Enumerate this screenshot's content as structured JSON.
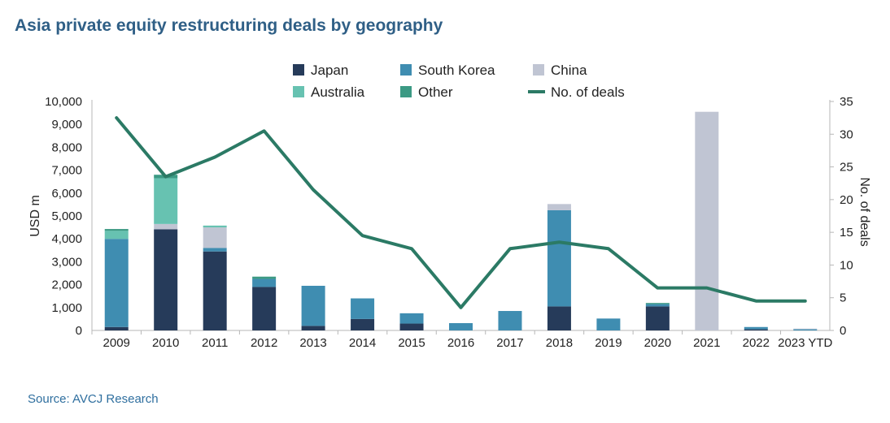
{
  "title": "Asia private equity restructuring deals by geography",
  "source": "Source: AVCJ Research",
  "chart_data": {
    "type": "bar",
    "stacked": true,
    "title": "Asia private equity restructuring deals by geography",
    "categories": [
      "2009",
      "2010",
      "2011",
      "2012",
      "2013",
      "2014",
      "2015",
      "2016",
      "2017",
      "2018",
      "2019",
      "2020",
      "2021",
      "2022",
      "2023 YTD"
    ],
    "ylabel": "USD m",
    "y2label": "No. of deals",
    "ylim": [
      0,
      10000
    ],
    "y2lim": [
      0,
      35
    ],
    "yticks": [
      "0",
      "1,000",
      "2,000",
      "3,000",
      "4,000",
      "5,000",
      "6,000",
      "7,000",
      "8,000",
      "9,000",
      "10,000"
    ],
    "y2ticks": [
      "0",
      "5",
      "10",
      "15",
      "20",
      "25",
      "30",
      "35"
    ],
    "series": [
      {
        "name": "Japan",
        "color": "#263b5a",
        "values": [
          150,
          4420,
          3450,
          1900,
          200,
          500,
          300,
          0,
          0,
          1050,
          0,
          1050,
          0,
          50,
          0
        ]
      },
      {
        "name": "South Korea",
        "color": "#3f8db1",
        "values": [
          3850,
          0,
          150,
          350,
          1750,
          900,
          450,
          320,
          850,
          4200,
          520,
          100,
          0,
          100,
          50
        ]
      },
      {
        "name": "China",
        "color": "#c0c5d3",
        "values": [
          0,
          230,
          900,
          0,
          0,
          0,
          0,
          0,
          0,
          270,
          0,
          0,
          9550,
          0,
          30
        ]
      },
      {
        "name": "Australia",
        "color": "#67c2b1",
        "values": [
          350,
          2000,
          80,
          0,
          0,
          0,
          0,
          0,
          0,
          0,
          0,
          0,
          0,
          0,
          0
        ]
      },
      {
        "name": "Other",
        "color": "#3c9a84",
        "values": [
          80,
          150,
          0,
          100,
          0,
          0,
          0,
          0,
          0,
          0,
          0,
          50,
          0,
          0,
          0
        ]
      }
    ],
    "line": {
      "name": "No. of deals",
      "color": "#2b7a65",
      "values": [
        32.5,
        23.5,
        26.5,
        30.5,
        21.5,
        14.5,
        12.5,
        3.5,
        12.5,
        13.5,
        12.5,
        6.5,
        6.5,
        4.5,
        4.5
      ]
    },
    "legend_position": "top"
  }
}
